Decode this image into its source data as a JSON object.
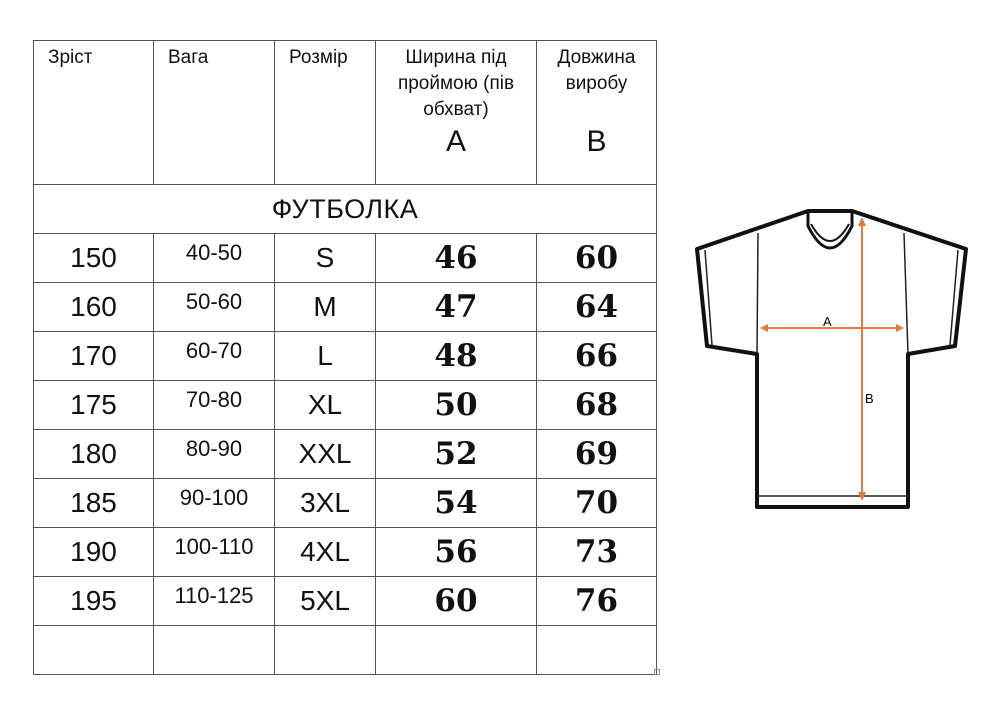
{
  "table": {
    "headers": [
      "Зріст",
      "Вага",
      "Розмір",
      "Ширина під проймою (пів обхват)",
      "Довжина виробу"
    ],
    "header_letters": {
      "width": "A",
      "length": "B"
    },
    "section_title": "ФУТБОЛКА",
    "rows": [
      [
        "150",
        "40-50",
        "S",
        "46",
        "60"
      ],
      [
        "160",
        "50-60",
        "M",
        "47",
        "64"
      ],
      [
        "170",
        "60-70",
        "L",
        "48",
        "66"
      ],
      [
        "175",
        "70-80",
        "XL",
        "50",
        "68"
      ],
      [
        "180",
        "80-90",
        "XXL",
        "52",
        "69"
      ],
      [
        "185",
        "90-100",
        "3XL",
        "54",
        "70"
      ],
      [
        "190",
        "100-110",
        "4XL",
        "56",
        "73"
      ],
      [
        "195",
        "110-125",
        "5XL",
        "60",
        "76"
      ]
    ]
  },
  "diagram": {
    "label_a": "A",
    "label_b": "B",
    "arrow_color": "#e07b39"
  }
}
